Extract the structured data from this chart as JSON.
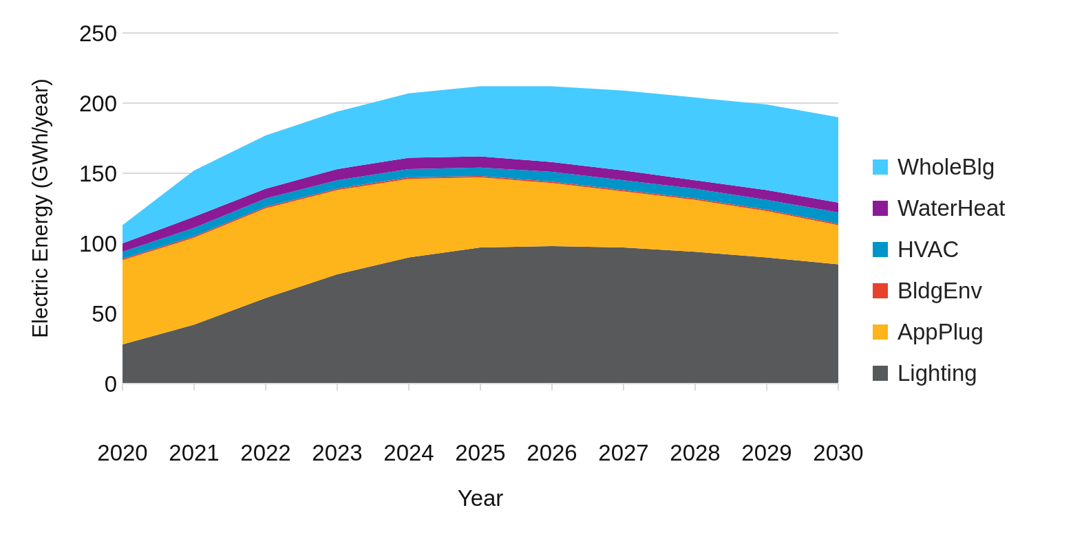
{
  "chart_data": {
    "type": "area",
    "stacked": true,
    "xlabel": "Year",
    "ylabel": "Electric Energy (GWh/year)",
    "categories": [
      "2020",
      "2021",
      "2022",
      "2023",
      "2024",
      "2025",
      "2026",
      "2027",
      "2028",
      "2029",
      "2030"
    ],
    "series": [
      {
        "name": "Lighting",
        "color": "#58595b",
        "values": [
          28,
          42,
          61,
          78,
          90,
          97,
          98,
          97,
          94,
          90,
          85
        ]
      },
      {
        "name": "AppPlug",
        "color": "#fdb51b",
        "values": [
          60,
          62,
          64,
          60,
          56,
          50,
          45,
          40,
          37,
          33,
          28
        ]
      },
      {
        "name": "BldgEnv",
        "color": "#e8412c",
        "values": [
          1,
          1,
          1,
          1,
          1,
          1,
          1,
          1,
          1,
          1,
          1
        ]
      },
      {
        "name": "HVAC",
        "color": "#0095c8",
        "values": [
          5,
          6,
          6,
          6,
          6,
          6,
          7,
          7,
          7,
          7,
          8
        ]
      },
      {
        "name": "WaterHeat",
        "color": "#8c1a96",
        "values": [
          6,
          8,
          7,
          8,
          8,
          8,
          7,
          7,
          6,
          7,
          7
        ]
      },
      {
        "name": "WholeBlg",
        "color": "#45cbff",
        "values": [
          13,
          33,
          38,
          41,
          46,
          50,
          54,
          57,
          59,
          61,
          61
        ]
      }
    ],
    "ylim": [
      0,
      250
    ],
    "yticks": [
      0,
      50,
      100,
      150,
      200,
      250
    ],
    "grid": "y",
    "legend": "right"
  }
}
